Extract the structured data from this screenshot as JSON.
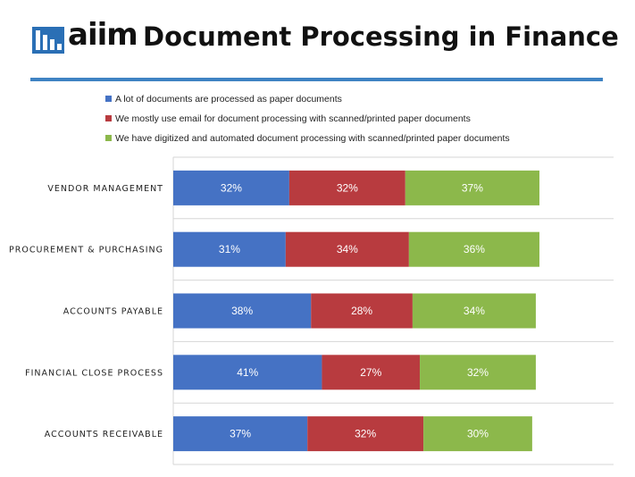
{
  "header": {
    "logo_text": "aiim",
    "title": "Document Processing in Finance",
    "rule_color": "#3f83c3",
    "logo_color": "#2a6fb5"
  },
  "chart_data": {
    "type": "bar",
    "orientation": "horizontal",
    "stacked": true,
    "categories": [
      "VENDOR MANAGEMENT",
      "PROCUREMENT & PURCHASING",
      "ACCOUNTS PAYABLE",
      "FINANCIAL CLOSE PROCESS",
      "ACCOUNTS RECEIVABLE"
    ],
    "series": [
      {
        "name": "A lot of documents are processed as paper documents",
        "color": "#4572c4",
        "values": [
          32,
          31,
          38,
          41,
          37
        ]
      },
      {
        "name": "We mostly use email for document processing with scanned/printed paper documents",
        "color": "#b83b3f",
        "values": [
          32,
          34,
          28,
          27,
          32
        ]
      },
      {
        "name": "We have digitized and automated document processing with scanned/printed paper documents",
        "color": "#8cb84b",
        "values": [
          37,
          36,
          34,
          32,
          30
        ]
      }
    ],
    "value_suffix": "%",
    "legend_position": "top",
    "grid": "horizontal-gridlines"
  }
}
